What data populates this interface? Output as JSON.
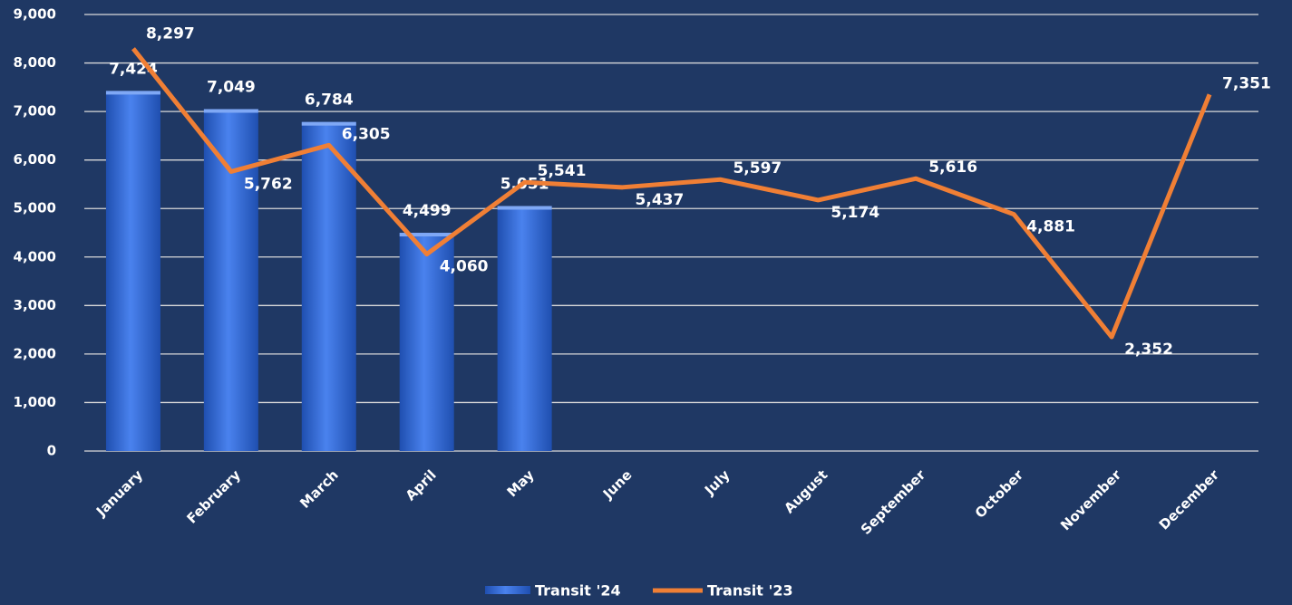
{
  "chart_data": {
    "type": "bar_line",
    "categories": [
      "January",
      "February",
      "March",
      "April",
      "May",
      "June",
      "July",
      "August",
      "September",
      "October",
      "November",
      "December"
    ],
    "series": [
      {
        "name": "Transit '24",
        "type": "bar",
        "color": "#3a6fd8",
        "values": [
          7424,
          7049,
          6784,
          4499,
          5051,
          null,
          null,
          null,
          null,
          null,
          null,
          null
        ],
        "value_labels": [
          "7,424",
          "7,049",
          "6,784",
          "4,499",
          "5,051",
          null,
          null,
          null,
          null,
          null,
          null,
          null
        ]
      },
      {
        "name": "Transit '23",
        "type": "line",
        "color": "#f07f35",
        "values": [
          8297,
          5762,
          6305,
          4060,
          5541,
          5437,
          5597,
          5174,
          5616,
          4881,
          2352,
          7351
        ],
        "value_labels": [
          "8,297",
          "5,762",
          "6,305",
          "4,060",
          "5,541",
          "5,437",
          "5,597",
          "5,174",
          "5,616",
          "4,881",
          "2,352",
          "7,351"
        ]
      }
    ],
    "ylim": [
      0,
      9000
    ],
    "yticks": [
      0,
      {
        "value": 1000,
        "label": "1,000"
      },
      {
        "value": 2000,
        "label": "2,000"
      },
      {
        "value": 3000,
        "label": "3,000"
      },
      {
        "value": 4000,
        "label": "4,000"
      },
      {
        "value": 5000,
        "label": "5,000"
      },
      {
        "value": 6000,
        "label": "6,000"
      },
      {
        "value": 7000,
        "label": "7,000"
      },
      {
        "value": 8000,
        "label": "8,000"
      },
      {
        "value": 9000,
        "label": "9,000"
      }
    ],
    "grid": true,
    "legend": "bottom"
  }
}
